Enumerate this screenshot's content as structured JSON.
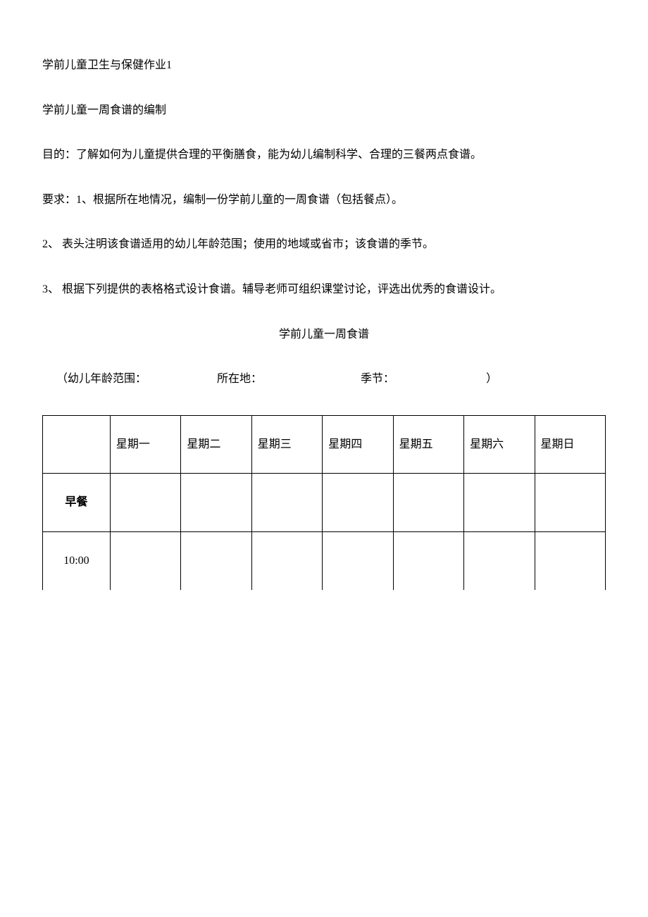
{
  "title": "学前儿童卫生与保健作业1",
  "subtitle": "学前儿童一周食谱的编制",
  "purpose_label": "目的：",
  "purpose_text": "了解如何为儿童提供合理的平衡膳食，能为幼儿编制科学、合理的三餐两点食谱。",
  "requirements_label": "要求：",
  "req1": "1、根据所在地情况，编制一份学前儿童的一周食谱（包括餐点）。",
  "req2": "2、 表头注明该食谱适用的幼儿年龄范围；使用的地域或省市；该食谱的季节。",
  "req3": "3、 根据下列提供的表格格式设计食谱。辅导老师可组织课堂讨论，评选出优秀的食谱设计。",
  "table_title": "学前儿童一周食谱",
  "form": {
    "open_paren": "（",
    "age_label": "幼儿年龄范围：",
    "location_label": "所在地：",
    "season_label": "季节：",
    "close_paren": "）"
  },
  "table": {
    "columns": [
      "",
      "星期一",
      "星期二",
      "星期三",
      "星期四",
      "星期五",
      "星期六",
      "星期日"
    ],
    "rows": [
      {
        "label": "早餐",
        "bold": true,
        "cells": [
          "",
          "",
          "",
          "",
          "",
          "",
          ""
        ]
      },
      {
        "label": "10:00",
        "bold": false,
        "cells": [
          "",
          "",
          "",
          "",
          "",
          "",
          ""
        ]
      }
    ]
  }
}
